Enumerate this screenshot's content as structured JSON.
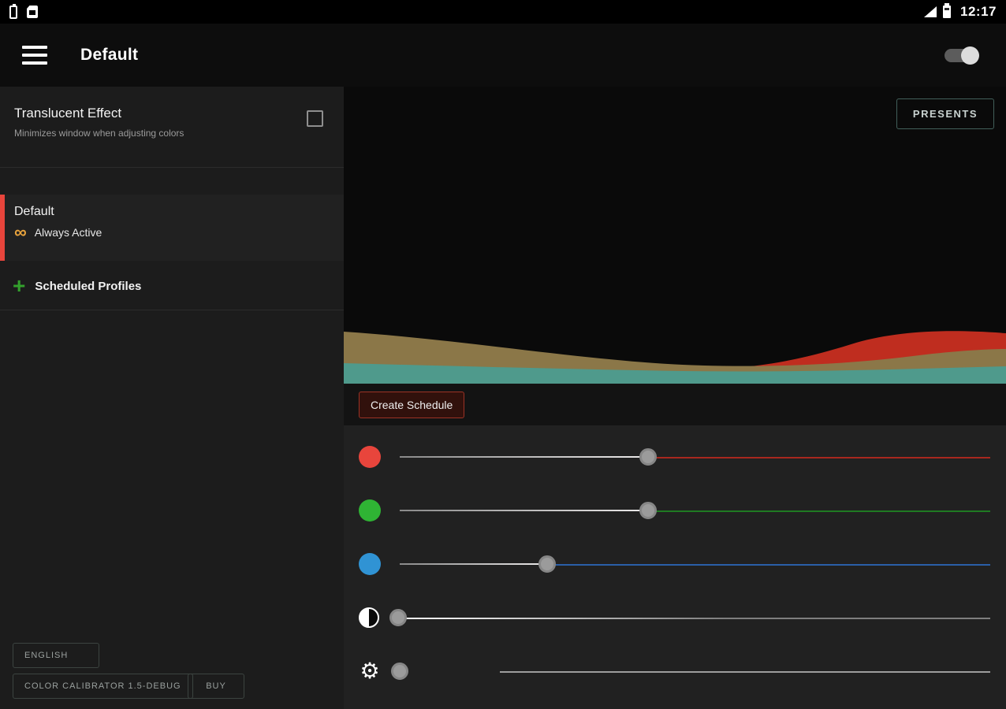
{
  "status_bar": {
    "time": "12:17"
  },
  "app_bar": {
    "title": "Default",
    "toggle_on": true
  },
  "sidebar": {
    "translucent_effect": {
      "title": "Translucent Effect",
      "subtitle": "Minimizes window when adjusting colors",
      "checked": false
    },
    "profile": {
      "name": "Default",
      "schedule": "Always Active",
      "accent_color": "#e8453c",
      "infinity_color": "#e8a33d"
    },
    "scheduled_profiles": {
      "label": "Scheduled Profiles",
      "plus_color": "#33a02c"
    },
    "footer": {
      "language_button": "ENGLISH",
      "version_button": "COLOR CALIBRATOR 1.5-DEBUG",
      "buy_button": "BUY"
    }
  },
  "main": {
    "presets_button": "PRESENTS",
    "create_schedule_button": "Create Schedule",
    "wave_colors": {
      "red": "#bf2d1f",
      "tan": "#8b7748",
      "teal": "#4f9a8c"
    },
    "sliders": [
      {
        "name": "red",
        "icon_color": "#e8453c",
        "remainder_color": "#a8281e",
        "value_percent": 42
      },
      {
        "name": "green",
        "icon_color": "#2fb434",
        "remainder_color": "#1f7a22",
        "value_percent": 42
      },
      {
        "name": "blue",
        "icon_color": "#3093d4",
        "remainder_color": "#2a5fa8",
        "value_percent": 25
      },
      {
        "name": "contrast",
        "remainder_color": "#7f7f7f",
        "fade_from": "#ffffff",
        "value_percent": 0
      },
      {
        "name": "gamma",
        "glyph": "⚙",
        "remainder_color": "#9e9e9e",
        "gap_percent": 17,
        "value_percent": 0
      }
    ]
  }
}
